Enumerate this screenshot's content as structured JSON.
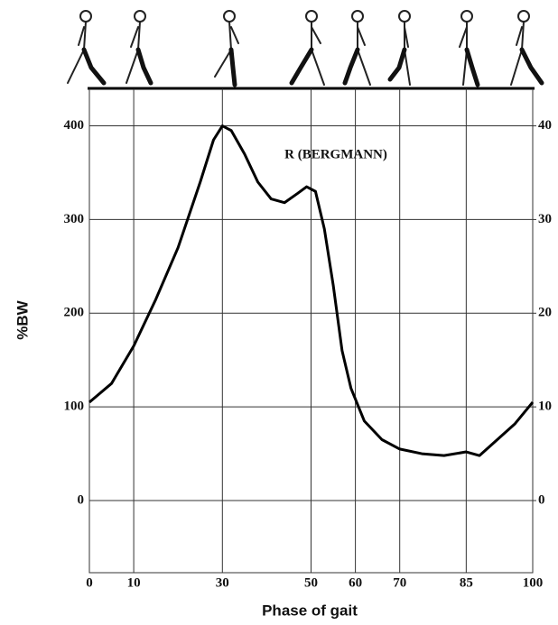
{
  "chart_data": {
    "type": "line",
    "annotation": "R (BERGMANN)",
    "x_label": "Phase of gait",
    "y_label": "%BW",
    "x": [
      0,
      5,
      10,
      15,
      20,
      25,
      28,
      30,
      32,
      35,
      38,
      41,
      44,
      47,
      49,
      51,
      53,
      55,
      57,
      59,
      62,
      66,
      70,
      75,
      80,
      85,
      88,
      92,
      96,
      100
    ],
    "series": [
      {
        "name": "R (BERGMANN)",
        "color": "#000000",
        "values": [
          105,
          125,
          165,
          215,
          270,
          340,
          385,
          400,
          395,
          370,
          340,
          322,
          318,
          328,
          335,
          330,
          290,
          230,
          160,
          120,
          85,
          65,
          55,
          50,
          48,
          52,
          48,
          65,
          82,
          105
        ]
      }
    ],
    "xlim": [
      0,
      100
    ],
    "xticks": [
      0,
      10,
      30,
      50,
      60,
      70,
      85,
      100
    ],
    "ylim": [
      -77,
      440
    ],
    "yticks": [
      0,
      100,
      200,
      300,
      400
    ],
    "y2lim": [
      -7.7,
      44
    ],
    "y2ticks": [
      0,
      10,
      20,
      30,
      40
    ],
    "grid": true
  }
}
